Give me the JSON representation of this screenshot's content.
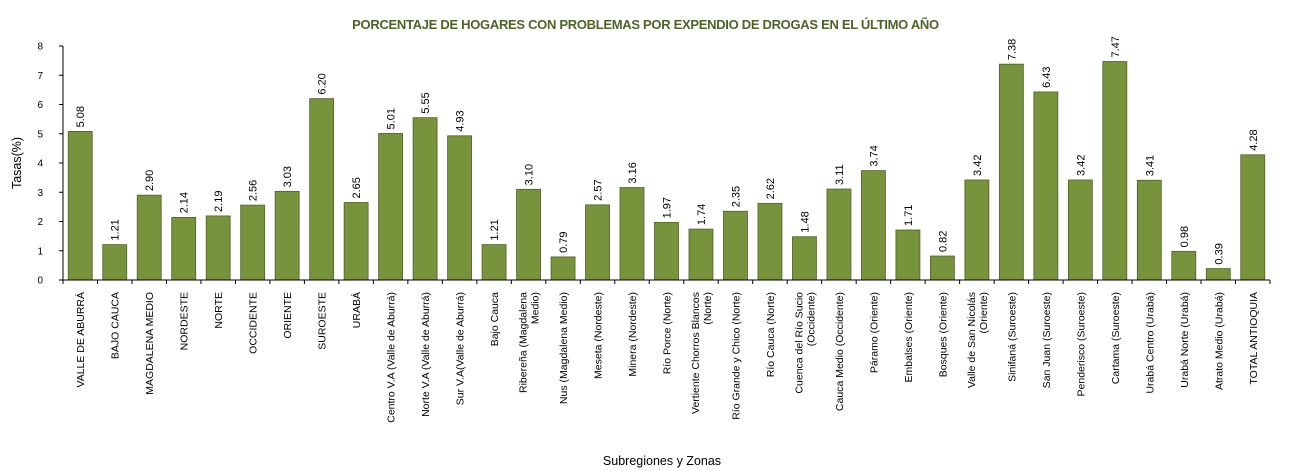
{
  "chart_data": {
    "type": "bar",
    "title": "PORCENTAJE DE HOGARES CON PROBLEMAS POR EXPENDIO DE DROGAS EN EL ÚLTIMO AÑO",
    "xlabel": "Subregiones y Zonas",
    "ylabel": "Tasas(%)",
    "ylim": [
      0,
      8
    ],
    "yticks": [
      0,
      1,
      2,
      3,
      4,
      5,
      6,
      7,
      8
    ],
    "grid": false,
    "bar_color": "#77933c",
    "bar_edge_color": "#4f6228",
    "title_color": "#4f6228",
    "categories": [
      [
        "VALLE DE ABURRÁ"
      ],
      [
        "BAJO CAUCA"
      ],
      [
        "MAGDALENA MEDIO"
      ],
      [
        "NORDESTE"
      ],
      [
        "NORTE"
      ],
      [
        "OCCIDENTE"
      ],
      [
        "ORIENTE"
      ],
      [
        "SUROESTE"
      ],
      [
        "URABÁ"
      ],
      [
        "Centro V.A (Valle de Aburrá)"
      ],
      [
        "Norte V.A (Valle de Aburrá)"
      ],
      [
        "Sur V.A(Valle de Aburrá)"
      ],
      [
        "Bajo Cauca"
      ],
      [
        "Ribereña (Magdalena",
        "Medio)"
      ],
      [
        "Nus (Magdalena Medio)"
      ],
      [
        "Meseta (Nordeste)"
      ],
      [
        "Minera (Nordeste)"
      ],
      [
        "Río Porce (Norte)"
      ],
      [
        "Vertiente Chorros Blancos",
        "(Norte)"
      ],
      [
        "Río Grande y Chico (Norte)"
      ],
      [
        "Río Cauca (Norte)"
      ],
      [
        "Cuenca del Río Sucio",
        "(Occidente)"
      ],
      [
        "Cauca Medio (Occidente)"
      ],
      [
        "Páramo (Oriente)"
      ],
      [
        "Embalses (Oriente)"
      ],
      [
        "Bosques (Oriente)"
      ],
      [
        "Valle de San Nicolás",
        "(Oriente)"
      ],
      [
        "Sinifaná (Suroeste)"
      ],
      [
        "San Juan (Suroeste)"
      ],
      [
        "Penderisco (Suroeste)"
      ],
      [
        "Cartama (Suroeste)"
      ],
      [
        "Urabá Centro (Urabá)"
      ],
      [
        "Urabá Norte (Urabá)"
      ],
      [
        "Atrato Medio (Urabá)"
      ],
      [
        "TOTAL ANTIOQUIA"
      ]
    ],
    "values": [
      5.08,
      1.21,
      2.9,
      2.14,
      2.19,
      2.56,
      3.03,
      6.2,
      2.65,
      5.01,
      5.55,
      4.93,
      1.21,
      3.1,
      0.79,
      2.57,
      3.16,
      1.97,
      1.74,
      2.35,
      2.62,
      1.48,
      3.11,
      3.74,
      1.71,
      0.82,
      3.42,
      7.38,
      6.43,
      3.42,
      7.47,
      3.41,
      0.98,
      0.39,
      4.28
    ],
    "value_labels": [
      "5.08",
      "1.21",
      "2.90",
      "2.14",
      "2.19",
      "2.56",
      "3.03",
      "6.20",
      "2.65",
      "5.01",
      "5.55",
      "4.93",
      "1.21",
      "3.10",
      "0.79",
      "2.57",
      "3.16",
      "1.97",
      "1.74",
      "2.35",
      "2.62",
      "1.48",
      "3.11",
      "3.74",
      "1.71",
      "0.82",
      "3.42",
      "7.38",
      "6.43",
      "3.42",
      "7.47",
      "3.41",
      "0.98",
      "0.39",
      "4.28"
    ]
  }
}
